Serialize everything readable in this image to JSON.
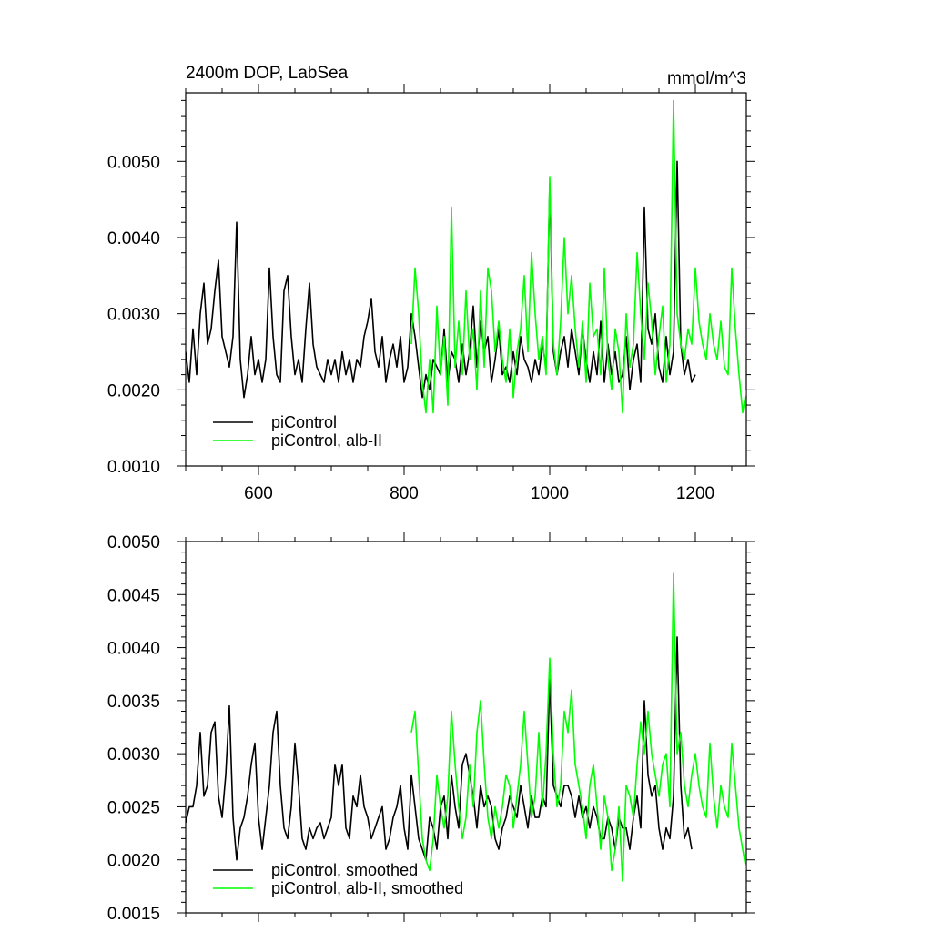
{
  "chart_data": [
    {
      "type": "line",
      "title": "2400m DOP, LabSea",
      "units": "mmol/m^3",
      "xlim": [
        500,
        1270
      ],
      "ylim": [
        0.001,
        0.0059
      ],
      "x_ticks": [
        "600",
        "800",
        "1000",
        "1200"
      ],
      "y_ticks": [
        "0.0010",
        "0.0020",
        "0.0030",
        "0.0040",
        "0.0050"
      ],
      "legend_position": "bottom-left",
      "series": [
        {
          "name": "piControl",
          "color": "#000000",
          "x": [
            500,
            505,
            510,
            515,
            520,
            525,
            530,
            535,
            540,
            545,
            550,
            555,
            560,
            565,
            570,
            575,
            580,
            585,
            590,
            595,
            600,
            605,
            610,
            615,
            620,
            625,
            630,
            635,
            640,
            645,
            650,
            655,
            660,
            665,
            670,
            675,
            680,
            685,
            690,
            695,
            700,
            705,
            710,
            715,
            720,
            725,
            730,
            735,
            740,
            745,
            750,
            755,
            760,
            765,
            770,
            775,
            780,
            785,
            790,
            795,
            800,
            805,
            810,
            815,
            820,
            825,
            830,
            835,
            840,
            845,
            850,
            855,
            860,
            865,
            870,
            875,
            880,
            885,
            890,
            895,
            900,
            905,
            910,
            915,
            920,
            925,
            930,
            935,
            940,
            945,
            950,
            955,
            960,
            965,
            970,
            975,
            980,
            985,
            990,
            995,
            1000,
            1005,
            1010,
            1015,
            1020,
            1025,
            1030,
            1035,
            1040,
            1045,
            1050,
            1055,
            1060,
            1065,
            1070,
            1075,
            1080,
            1085,
            1090,
            1095,
            1100,
            1105,
            1110,
            1115,
            1120,
            1125,
            1130,
            1135,
            1140,
            1145,
            1150,
            1155,
            1160,
            1165,
            1170,
            1175,
            1180,
            1185,
            1190,
            1195,
            1200
          ],
          "y": [
            0.0025,
            0.0021,
            0.0028,
            0.0022,
            0.003,
            0.0034,
            0.0026,
            0.0028,
            0.0033,
            0.0037,
            0.0027,
            0.0025,
            0.0023,
            0.0027,
            0.0042,
            0.0024,
            0.0019,
            0.0022,
            0.0027,
            0.0022,
            0.0024,
            0.0021,
            0.0024,
            0.0036,
            0.0027,
            0.0022,
            0.0021,
            0.0033,
            0.0035,
            0.0027,
            0.0022,
            0.0024,
            0.0021,
            0.0028,
            0.0034,
            0.0026,
            0.0023,
            0.0022,
            0.0021,
            0.0024,
            0.0022,
            0.0024,
            0.0021,
            0.0025,
            0.0022,
            0.0024,
            0.0021,
            0.0024,
            0.0023,
            0.0027,
            0.0029,
            0.0032,
            0.0025,
            0.0023,
            0.0027,
            0.0021,
            0.0024,
            0.0026,
            0.0023,
            0.0027,
            0.0021,
            0.0023,
            0.003,
            0.0027,
            0.0023,
            0.0019,
            0.0022,
            0.002,
            0.0024,
            0.0023,
            0.0022,
            0.0028,
            0.0021,
            0.0025,
            0.0024,
            0.0021,
            0.0026,
            0.0022,
            0.0025,
            0.0031,
            0.0023,
            0.0029,
            0.0025,
            0.0027,
            0.0021,
            0.0024,
            0.0028,
            0.0022,
            0.0023,
            0.0021,
            0.0025,
            0.0022,
            0.0027,
            0.0024,
            0.0023,
            0.0021,
            0.0024,
            0.0022,
            0.0026,
            0.0023,
            0.0047,
            0.0025,
            0.0022,
            0.0025,
            0.0027,
            0.0023,
            0.0028,
            0.0025,
            0.0022,
            0.0028,
            0.0024,
            0.0021,
            0.0025,
            0.0022,
            0.0029,
            0.0021,
            0.0026,
            0.0022,
            0.0025,
            0.0021,
            0.0022,
            0.0027,
            0.002,
            0.0024,
            0.0026,
            0.0021,
            0.0044,
            0.0028,
            0.0026,
            0.003,
            0.0023,
            0.0021,
            0.0027,
            0.0022,
            0.0025,
            0.005,
            0.0026,
            0.0022,
            0.0024,
            0.0021,
            0.0022
          ]
        },
        {
          "name": "piControl, alb-II",
          "color": "#00ff00",
          "x": [
            810,
            815,
            820,
            825,
            830,
            835,
            840,
            845,
            850,
            855,
            860,
            865,
            870,
            875,
            880,
            885,
            890,
            895,
            900,
            905,
            910,
            915,
            920,
            925,
            930,
            935,
            940,
            945,
            950,
            955,
            960,
            965,
            970,
            975,
            980,
            985,
            990,
            995,
            1000,
            1005,
            1010,
            1015,
            1020,
            1025,
            1030,
            1035,
            1040,
            1045,
            1050,
            1055,
            1060,
            1065,
            1070,
            1075,
            1080,
            1085,
            1090,
            1095,
            1100,
            1105,
            1110,
            1115,
            1120,
            1125,
            1130,
            1135,
            1140,
            1145,
            1150,
            1155,
            1160,
            1165,
            1170,
            1175,
            1180,
            1185,
            1190,
            1195,
            1200,
            1205,
            1210,
            1215,
            1220,
            1225,
            1230,
            1235,
            1240,
            1245,
            1250,
            1255,
            1260,
            1265,
            1270
          ],
          "y": [
            0.0026,
            0.0036,
            0.003,
            0.0021,
            0.0017,
            0.0024,
            0.0017,
            0.0031,
            0.0022,
            0.0027,
            0.0018,
            0.0044,
            0.0023,
            0.0029,
            0.0022,
            0.0033,
            0.0024,
            0.0028,
            0.002,
            0.0033,
            0.0023,
            0.0036,
            0.0033,
            0.0025,
            0.0029,
            0.0024,
            0.0021,
            0.0028,
            0.0019,
            0.0025,
            0.0028,
            0.0035,
            0.0025,
            0.0038,
            0.003,
            0.0024,
            0.0027,
            0.0022,
            0.0048,
            0.0026,
            0.0022,
            0.0029,
            0.004,
            0.003,
            0.0035,
            0.0028,
            0.0023,
            0.0029,
            0.0021,
            0.0034,
            0.0027,
            0.0028,
            0.0022,
            0.0036,
            0.0024,
            0.002,
            0.0028,
            0.0025,
            0.0017,
            0.003,
            0.0023,
            0.0026,
            0.0038,
            0.003,
            0.0024,
            0.0034,
            0.0029,
            0.0022,
            0.0027,
            0.0031,
            0.0021,
            0.0026,
            0.0058,
            0.003,
            0.0026,
            0.0024,
            0.0028,
            0.0026,
            0.0036,
            0.0029,
            0.0026,
            0.0024,
            0.003,
            0.0026,
            0.0024,
            0.0029,
            0.0023,
            0.0022,
            0.0036,
            0.0028,
            0.0022,
            0.0017,
            0.002
          ]
        }
      ]
    },
    {
      "type": "line",
      "xlim": [
        500,
        1270
      ],
      "ylim": [
        0.0015,
        0.005
      ],
      "x_ticks": [
        "",
        "",
        "",
        ""
      ],
      "y_ticks": [
        "0.0015",
        "0.0020",
        "0.0025",
        "0.0030",
        "0.0035",
        "0.0040",
        "0.0045",
        "0.0050"
      ],
      "legend_position": "bottom-left",
      "series": [
        {
          "name": "piControl, smoothed",
          "color": "#000000",
          "x": [
            500,
            505,
            510,
            515,
            520,
            525,
            530,
            535,
            540,
            545,
            550,
            555,
            560,
            565,
            570,
            575,
            580,
            585,
            590,
            595,
            600,
            605,
            610,
            615,
            620,
            625,
            630,
            635,
            640,
            645,
            650,
            655,
            660,
            665,
            670,
            675,
            680,
            685,
            690,
            695,
            700,
            705,
            710,
            715,
            720,
            725,
            730,
            735,
            740,
            745,
            750,
            755,
            760,
            765,
            770,
            775,
            780,
            785,
            790,
            795,
            800,
            805,
            810,
            815,
            820,
            825,
            830,
            835,
            840,
            845,
            850,
            855,
            860,
            865,
            870,
            875,
            880,
            885,
            890,
            895,
            900,
            905,
            910,
            915,
            920,
            925,
            930,
            935,
            940,
            945,
            950,
            955,
            960,
            965,
            970,
            975,
            980,
            985,
            990,
            995,
            1000,
            1005,
            1010,
            1015,
            1020,
            1025,
            1030,
            1035,
            1040,
            1045,
            1050,
            1055,
            1060,
            1065,
            1070,
            1075,
            1080,
            1085,
            1090,
            1095,
            1100,
            1105,
            1110,
            1115,
            1120,
            1125,
            1130,
            1135,
            1140,
            1145,
            1150,
            1155,
            1160,
            1165,
            1170,
            1175,
            1180,
            1185,
            1190,
            1195
          ],
          "y": [
            0.00235,
            0.0025,
            0.0025,
            0.0027,
            0.0032,
            0.0026,
            0.0027,
            0.0032,
            0.0033,
            0.0026,
            0.0024,
            0.0028,
            0.00345,
            0.0024,
            0.002,
            0.0023,
            0.0024,
            0.0026,
            0.0029,
            0.0031,
            0.0024,
            0.0021,
            0.0024,
            0.0027,
            0.0032,
            0.0034,
            0.0027,
            0.0023,
            0.0022,
            0.0025,
            0.0031,
            0.0027,
            0.0022,
            0.0021,
            0.0023,
            0.0022,
            0.0023,
            0.00235,
            0.0022,
            0.0023,
            0.0024,
            0.0029,
            0.0027,
            0.0029,
            0.0023,
            0.0022,
            0.0026,
            0.0025,
            0.0028,
            0.0025,
            0.0024,
            0.0022,
            0.0023,
            0.0024,
            0.0025,
            0.0021,
            0.0022,
            0.0024,
            0.0025,
            0.0027,
            0.0023,
            0.0021,
            0.0028,
            0.0025,
            0.0022,
            0.0021,
            0.002,
            0.0024,
            0.0023,
            0.0021,
            0.0025,
            0.0026,
            0.0022,
            0.0028,
            0.0025,
            0.0023,
            0.0029,
            0.003,
            0.0028,
            0.0026,
            0.0023,
            0.0027,
            0.0025,
            0.0026,
            0.0025,
            0.0022,
            0.0021,
            0.0023,
            0.0024,
            0.0026,
            0.0025,
            0.0024,
            0.0027,
            0.0025,
            0.0023,
            0.0026,
            0.0024,
            0.0024,
            0.0026,
            0.0025,
            0.0037,
            0.0027,
            0.0026,
            0.0025,
            0.0027,
            0.0027,
            0.0026,
            0.0024,
            0.0026,
            0.0024,
            0.0025,
            0.0023,
            0.0025,
            0.0024,
            0.0022,
            0.0022,
            0.0024,
            0.0023,
            0.0021,
            0.0024,
            0.0023,
            0.0023,
            0.0021,
            0.0024,
            0.0026,
            0.0023,
            0.0035,
            0.0028,
            0.0026,
            0.0027,
            0.0023,
            0.0021,
            0.0023,
            0.0022,
            0.0026,
            0.0041,
            0.0027,
            0.0022,
            0.0023,
            0.0021
          ]
        },
        {
          "name": "piControl, alb-II, smoothed",
          "color": "#00ff00",
          "x": [
            810,
            815,
            820,
            825,
            830,
            835,
            840,
            845,
            850,
            855,
            860,
            865,
            870,
            875,
            880,
            885,
            890,
            895,
            900,
            905,
            910,
            915,
            920,
            925,
            930,
            935,
            940,
            945,
            950,
            955,
            960,
            965,
            970,
            975,
            980,
            985,
            990,
            995,
            1000,
            1005,
            1010,
            1015,
            1020,
            1025,
            1030,
            1035,
            1040,
            1045,
            1050,
            1055,
            1060,
            1065,
            1070,
            1075,
            1080,
            1085,
            1090,
            1095,
            1100,
            1105,
            1110,
            1115,
            1120,
            1125,
            1130,
            1135,
            1140,
            1145,
            1150,
            1155,
            1160,
            1165,
            1170,
            1175,
            1180,
            1185,
            1190,
            1195,
            1200,
            1205,
            1210,
            1215,
            1220,
            1225,
            1230,
            1235,
            1240,
            1245,
            1250,
            1255,
            1260,
            1265,
            1270
          ],
          "y": [
            0.0032,
            0.0034,
            0.0028,
            0.0022,
            0.002,
            0.0019,
            0.0022,
            0.0028,
            0.0025,
            0.0023,
            0.0026,
            0.0034,
            0.0029,
            0.0025,
            0.0022,
            0.0024,
            0.0029,
            0.0025,
            0.0032,
            0.0035,
            0.0029,
            0.0024,
            0.0022,
            0.0025,
            0.0023,
            0.0025,
            0.0028,
            0.0027,
            0.0023,
            0.0026,
            0.0029,
            0.0034,
            0.0029,
            0.0024,
            0.0026,
            0.0032,
            0.0025,
            0.003,
            0.0039,
            0.003,
            0.0025,
            0.0027,
            0.0034,
            0.0032,
            0.0036,
            0.0029,
            0.0027,
            0.0025,
            0.0022,
            0.0027,
            0.0029,
            0.0025,
            0.0021,
            0.0026,
            0.0024,
            0.0019,
            0.0021,
            0.0025,
            0.0018,
            0.0027,
            0.0026,
            0.0024,
            0.0029,
            0.0033,
            0.003,
            0.0034,
            0.003,
            0.0028,
            0.0026,
            0.0029,
            0.003,
            0.0025,
            0.0047,
            0.003,
            0.0032,
            0.0027,
            0.0025,
            0.0028,
            0.003,
            0.0027,
            0.0025,
            0.0024,
            0.0031,
            0.0026,
            0.0023,
            0.0027,
            0.0025,
            0.0024,
            0.0031,
            0.0027,
            0.0023,
            0.0021,
            0.0019
          ]
        }
      ]
    }
  ]
}
